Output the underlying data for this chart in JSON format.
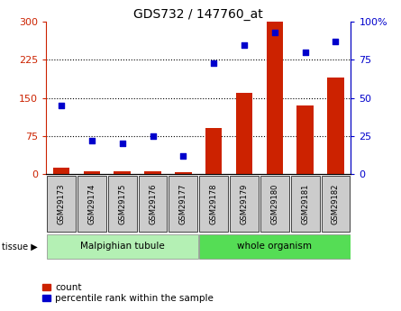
{
  "title": "GDS732 / 147760_at",
  "samples": [
    "GSM29173",
    "GSM29174",
    "GSM29175",
    "GSM29176",
    "GSM29177",
    "GSM29178",
    "GSM29179",
    "GSM29180",
    "GSM29181",
    "GSM29182"
  ],
  "counts": [
    13,
    5,
    5,
    5,
    4,
    90,
    160,
    300,
    135,
    190
  ],
  "percentiles": [
    45,
    22,
    20,
    25,
    12,
    73,
    85,
    93,
    80,
    87
  ],
  "left_ylim": [
    0,
    300
  ],
  "right_ylim": [
    0,
    100
  ],
  "left_yticks": [
    0,
    75,
    150,
    225,
    300
  ],
  "right_yticks": [
    0,
    25,
    50,
    75,
    100
  ],
  "right_yticklabels": [
    "0",
    "25",
    "50",
    "75",
    "100%"
  ],
  "left_color": "#cc2200",
  "right_color": "#0000cc",
  "bar_color": "#cc2200",
  "dot_color": "#0000cc",
  "tissue_groups": [
    {
      "label": "Malpighian tubule",
      "start": 0,
      "end": 5,
      "color": "#b4f0b4"
    },
    {
      "label": "whole organism",
      "start": 5,
      "end": 10,
      "color": "#55dd55"
    }
  ],
  "legend_count_label": "count",
  "legend_pct_label": "percentile rank within the sample",
  "tick_label_bg": "#cccccc"
}
